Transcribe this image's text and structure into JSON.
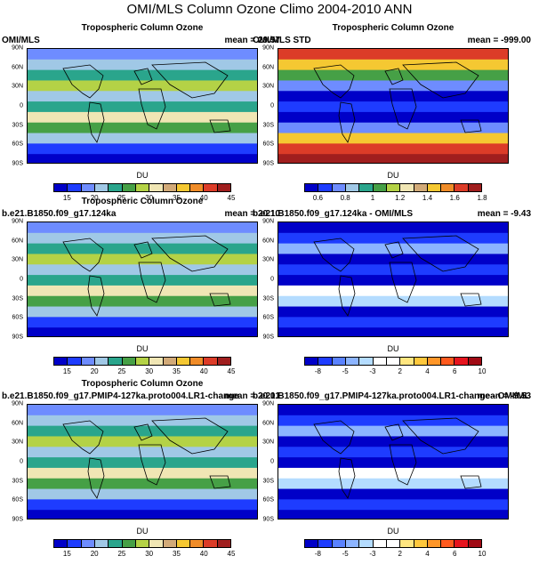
{
  "page_title": "OMI/MLS Column Ozone Climo 2004-2010 ANN",
  "lat_labels": [
    "90N",
    "60N",
    "30N",
    "0",
    "30S",
    "60S",
    "90S"
  ],
  "panels": [
    {
      "subtitle": "Tropospheric Column Ozone",
      "left": "OMI/MLS",
      "right": "mean =  29.57",
      "units": "DU",
      "scale": "absolute"
    },
    {
      "subtitle": "Tropospheric Column Ozone",
      "left": "OMI/MLS STD",
      "right": "mean = -999.00",
      "units": "DU",
      "scale": "std"
    },
    {
      "subtitle": "Tropospheric Column Ozone",
      "left": "b.e21.B1850.f09_g17.124ka",
      "right": "mean =  20.10",
      "units": "DU",
      "scale": "absolute"
    },
    {
      "subtitle": "",
      "left": "b.e21.B1850.f09_g17.124ka - OMI/MLS",
      "right": "mean =  -9.43",
      "units": "DU",
      "scale": "diff"
    },
    {
      "subtitle": "Tropospheric Column Ozone",
      "left": "b.e21.B1850.f09_g17.PMIP4-127ka.proto004.LR1-change",
      "right": "mean = 20.01",
      "units": "DU",
      "scale": "absolute"
    },
    {
      "subtitle": "",
      "left": "b.e21.B1850.f09_g17.PMIP4-127ka.proto004.LR1-change - OMI/ML",
      "right": "mean = -9.53",
      "units": "DU",
      "scale": "diff"
    }
  ],
  "colorbars": {
    "absolute": {
      "colors": [
        "#0000c8",
        "#1e3cff",
        "#6e8cff",
        "#a0c8e6",
        "#2aa58c",
        "#46a046",
        "#b4d246",
        "#f0e6b4",
        "#d2aa78",
        "#f5c832",
        "#f08c28",
        "#dc3c28",
        "#a01e1e"
      ],
      "ticks": [
        "15",
        "20",
        "25",
        "30",
        "35",
        "40",
        "45"
      ]
    },
    "std": {
      "colors": [
        "#0000c8",
        "#1e3cff",
        "#6e8cff",
        "#a0c8e6",
        "#2aa58c",
        "#46a046",
        "#b4d246",
        "#f0e6b4",
        "#d2aa78",
        "#f5c832",
        "#f08c28",
        "#dc3c28",
        "#a01e1e"
      ],
      "ticks": [
        "0.6",
        "0.8",
        "1",
        "1.2",
        "1.4",
        "1.6",
        "1.8"
      ]
    },
    "diff": {
      "colors": [
        "#0000c8",
        "#1e3cff",
        "#5a82ff",
        "#8cb4ff",
        "#b4dcff",
        "#ffffff",
        "#ffffff",
        "#ffe680",
        "#ffc83c",
        "#ff9628",
        "#ff5a1e",
        "#e6141e",
        "#a00a14"
      ],
      "ticks": [
        "-8",
        "-5",
        "-3",
        "2",
        "4",
        "6",
        "10"
      ]
    }
  }
}
